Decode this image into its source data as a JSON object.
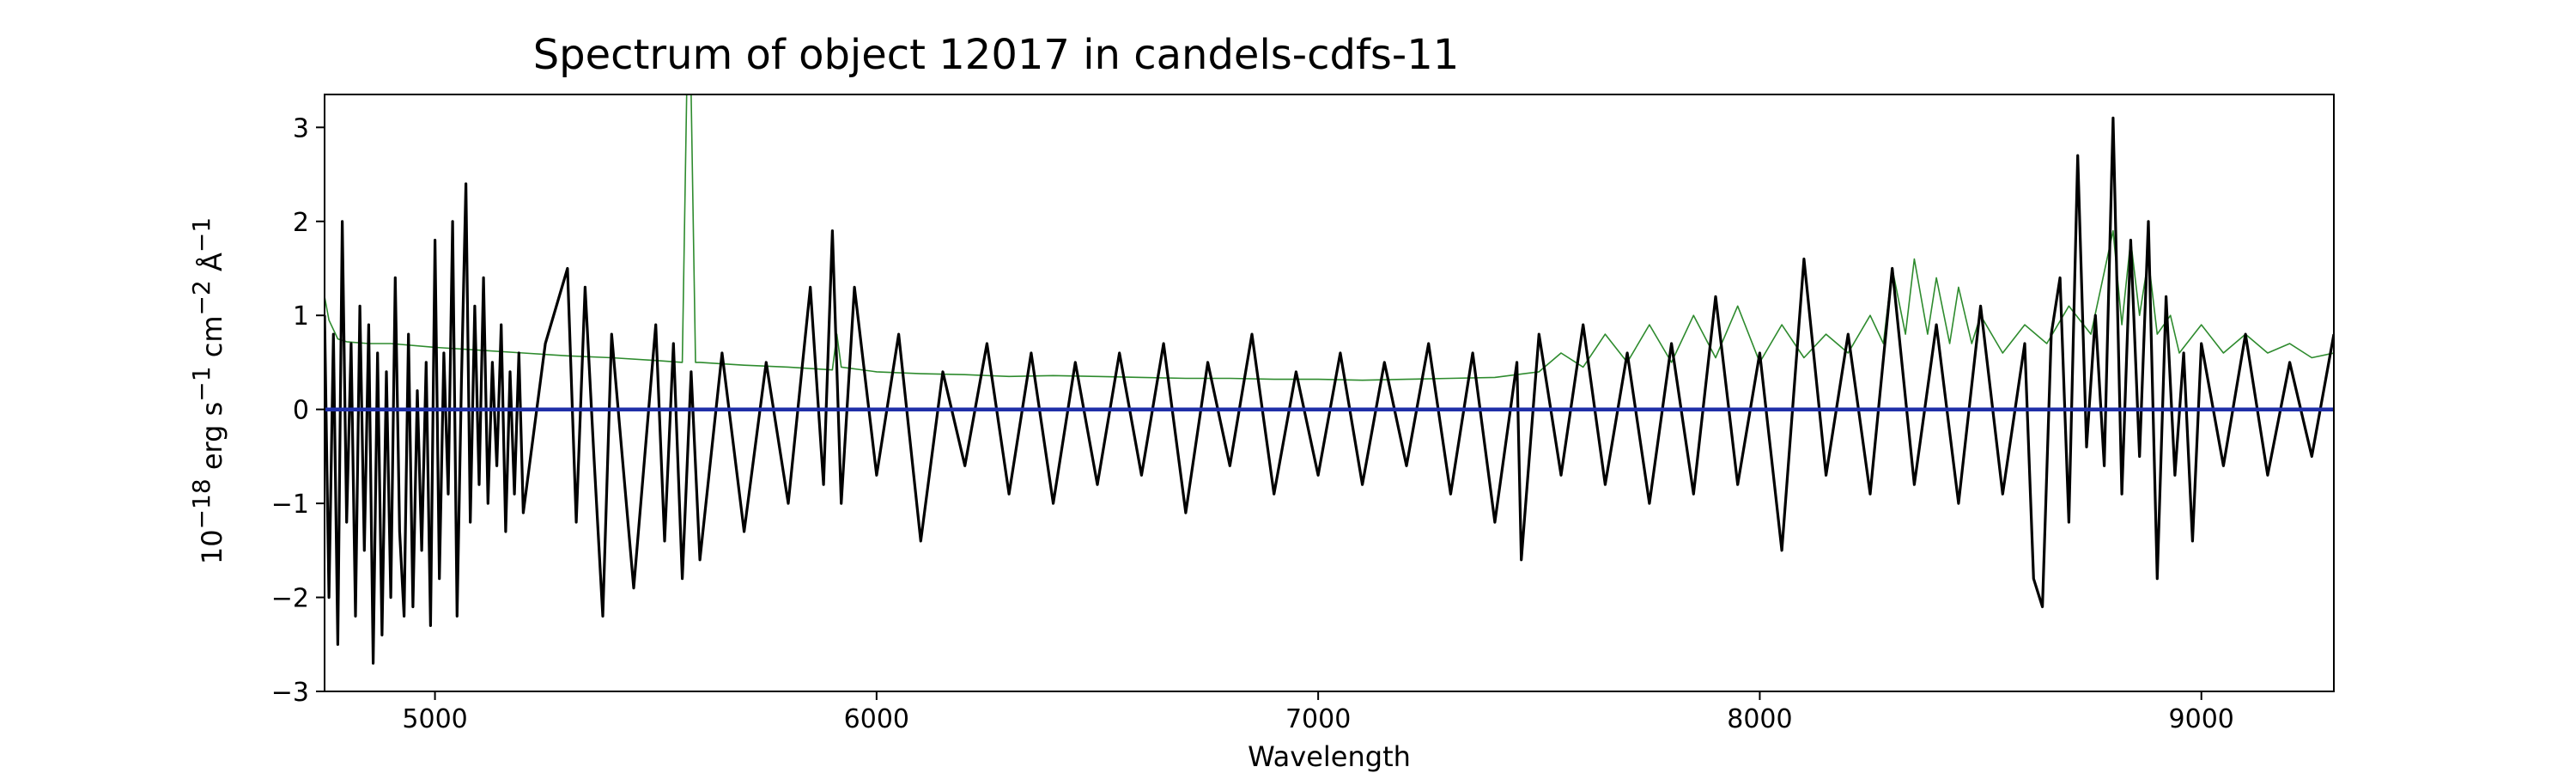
{
  "chart_data": {
    "type": "line",
    "title": "Spectrum of object 12017 in candels-cdfs-11",
    "xlabel": "Wavelength",
    "ylabel_parts": {
      "base": "10",
      "exp1": "−18",
      "mid1": " erg s",
      "exp2": "−1",
      "mid2": " cm",
      "exp3": "−2",
      "mid3": " Å",
      "exp4": "−1"
    },
    "xlim": [
      4750,
      9300
    ],
    "ylim": [
      -3,
      3.35
    ],
    "x_ticks": [
      5000,
      6000,
      7000,
      8000,
      9000
    ],
    "x_tick_labels": [
      "5000",
      "6000",
      "7000",
      "8000",
      "9000"
    ],
    "y_ticks": [
      -3,
      -2,
      -1,
      0,
      1,
      2,
      3
    ],
    "y_tick_labels": [
      "−3",
      "−2",
      "−1",
      "0",
      "1",
      "2",
      "3"
    ],
    "grid": false,
    "colors": {
      "flux": "#000000",
      "error": "#2e8b2e",
      "zero": "#1f2fa8"
    },
    "series": [
      {
        "role": "flux",
        "x": [
          4750,
          4760,
          4770,
          4780,
          4790,
          4800,
          4810,
          4820,
          4830,
          4840,
          4850,
          4860,
          4870,
          4880,
          4890,
          4900,
          4910,
          4920,
          4930,
          4940,
          4950,
          4960,
          4970,
          4980,
          4990,
          5000,
          5010,
          5020,
          5030,
          5040,
          5050,
          5060,
          5070,
          5080,
          5090,
          5100,
          5110,
          5120,
          5130,
          5140,
          5150,
          5160,
          5170,
          5180,
          5190,
          5200,
          5250,
          5300,
          5320,
          5340,
          5360,
          5380,
          5400,
          5450,
          5500,
          5520,
          5540,
          5560,
          5580,
          5600,
          5650,
          5700,
          5750,
          5800,
          5850,
          5880,
          5900,
          5920,
          5950,
          6000,
          6050,
          6100,
          6150,
          6200,
          6250,
          6300,
          6350,
          6400,
          6450,
          6500,
          6550,
          6600,
          6650,
          6700,
          6750,
          6800,
          6850,
          6900,
          6950,
          7000,
          7050,
          7100,
          7150,
          7200,
          7250,
          7300,
          7350,
          7400,
          7450,
          7460,
          7500,
          7550,
          7600,
          7650,
          7700,
          7750,
          7800,
          7850,
          7900,
          7950,
          8000,
          8050,
          8100,
          8150,
          8200,
          8250,
          8300,
          8350,
          8400,
          8450,
          8500,
          8550,
          8600,
          8620,
          8640,
          8660,
          8680,
          8700,
          8720,
          8740,
          8760,
          8780,
          8800,
          8820,
          8840,
          8860,
          8880,
          8900,
          8920,
          8940,
          8960,
          8980,
          9000,
          9050,
          9100,
          9150,
          9200,
          9250,
          9300
        ],
        "y": [
          1.0,
          -2.0,
          0.8,
          -2.5,
          2.0,
          -1.2,
          0.7,
          -2.2,
          1.1,
          -1.5,
          0.9,
          -2.7,
          0.6,
          -2.4,
          0.4,
          -2.0,
          1.4,
          -1.3,
          -2.2,
          0.8,
          -2.1,
          0.2,
          -1.5,
          0.5,
          -2.3,
          1.8,
          -1.8,
          0.6,
          -0.9,
          2.0,
          -2.2,
          0.3,
          2.4,
          -1.2,
          1.1,
          -0.8,
          1.4,
          -1.0,
          0.5,
          -0.6,
          0.9,
          -1.3,
          0.4,
          -0.9,
          0.6,
          -1.1,
          0.7,
          1.5,
          -1.2,
          1.3,
          -0.5,
          -2.2,
          0.8,
          -1.9,
          0.9,
          -1.4,
          0.7,
          -1.8,
          0.4,
          -1.6,
          0.6,
          -1.3,
          0.5,
          -1.0,
          1.3,
          -0.8,
          1.9,
          -1.0,
          1.3,
          -0.7,
          0.8,
          -1.4,
          0.4,
          -0.6,
          0.7,
          -0.9,
          0.6,
          -1.0,
          0.5,
          -0.8,
          0.6,
          -0.7,
          0.7,
          -1.1,
          0.5,
          -0.6,
          0.8,
          -0.9,
          0.4,
          -0.7,
          0.6,
          -0.8,
          0.5,
          -0.6,
          0.7,
          -0.9,
          0.6,
          -1.2,
          0.5,
          -1.6,
          0.8,
          -0.7,
          0.9,
          -0.8,
          0.6,
          -1.0,
          0.7,
          -0.9,
          1.2,
          -0.8,
          0.6,
          -1.5,
          1.6,
          -0.7,
          0.8,
          -0.9,
          1.5,
          -0.8,
          0.9,
          -1.0,
          1.1,
          -0.9,
          0.7,
          -1.8,
          -2.1,
          0.8,
          1.4,
          -1.2,
          2.7,
          -0.4,
          1.0,
          -0.6,
          3.1,
          -0.9,
          1.8,
          -0.5,
          2.0,
          -1.8,
          1.2,
          -0.7,
          0.6,
          -1.4,
          0.7,
          -0.6,
          0.8,
          -0.7,
          0.5,
          -0.5,
          0.8
        ]
      },
      {
        "role": "error",
        "x": [
          4750,
          4760,
          4780,
          4800,
          4850,
          4900,
          5000,
          5100,
          5200,
          5300,
          5400,
          5500,
          5560,
          5570,
          5580,
          5590,
          5600,
          5700,
          5800,
          5900,
          5910,
          5920,
          6000,
          6100,
          6200,
          6300,
          6400,
          6500,
          6600,
          6700,
          6800,
          6900,
          7000,
          7100,
          7200,
          7300,
          7400,
          7500,
          7550,
          7600,
          7650,
          7700,
          7750,
          7800,
          7850,
          7900,
          7950,
          8000,
          8050,
          8100,
          8150,
          8200,
          8250,
          8280,
          8300,
          8330,
          8350,
          8380,
          8400,
          8430,
          8450,
          8480,
          8500,
          8550,
          8600,
          8650,
          8700,
          8750,
          8800,
          8820,
          8840,
          8860,
          8880,
          8900,
          8930,
          8950,
          9000,
          9050,
          9100,
          9150,
          9200,
          9250,
          9300
        ],
        "y": [
          1.2,
          0.95,
          0.75,
          0.72,
          0.7,
          0.7,
          0.66,
          0.63,
          0.6,
          0.57,
          0.55,
          0.52,
          0.5,
          3.35,
          3.35,
          0.5,
          0.5,
          0.47,
          0.45,
          0.42,
          0.8,
          0.45,
          0.4,
          0.38,
          0.37,
          0.35,
          0.36,
          0.35,
          0.34,
          0.33,
          0.33,
          0.32,
          0.32,
          0.31,
          0.32,
          0.33,
          0.34,
          0.4,
          0.6,
          0.45,
          0.8,
          0.5,
          0.9,
          0.5,
          1.0,
          0.55,
          1.1,
          0.5,
          0.9,
          0.55,
          0.8,
          0.6,
          1.0,
          0.7,
          1.5,
          0.8,
          1.6,
          0.8,
          1.4,
          0.7,
          1.3,
          0.7,
          1.0,
          0.6,
          0.9,
          0.7,
          1.1,
          0.8,
          1.9,
          0.9,
          1.8,
          1.0,
          1.6,
          0.8,
          1.0,
          0.6,
          0.9,
          0.6,
          0.8,
          0.6,
          0.7,
          0.55,
          0.6
        ]
      },
      {
        "role": "zero",
        "x": [
          4750,
          9300
        ],
        "y": [
          0.0,
          0.0
        ]
      }
    ]
  }
}
